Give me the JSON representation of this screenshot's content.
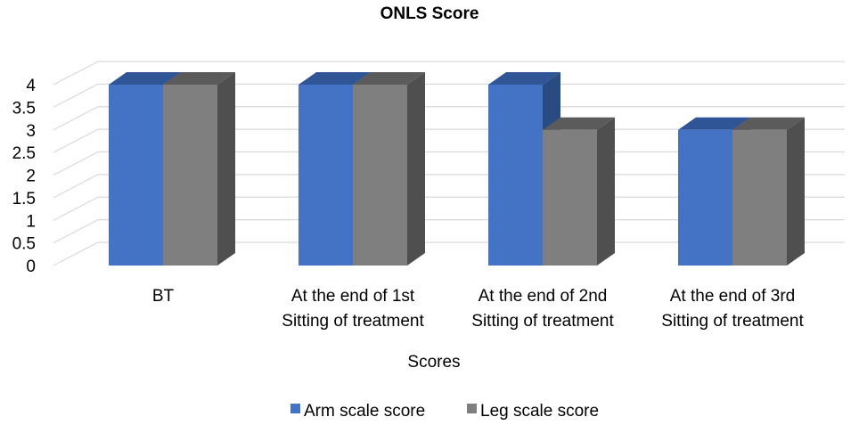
{
  "chart_data": {
    "type": "bar",
    "title": "ONLS Score",
    "xlabel": "Scores",
    "ylabel": "",
    "ylim": [
      0,
      4
    ],
    "yticks": [
      "0",
      "0.5",
      "1",
      "1.5",
      "2",
      "2.5",
      "3",
      "3.5",
      "4"
    ],
    "categories": [
      [
        "BT"
      ],
      [
        "At the end of 1st",
        "Sitting  of treatment"
      ],
      [
        "At the end of 2nd",
        "Sitting  of treatment"
      ],
      [
        "At the end of 3rd",
        "Sitting  of treatment"
      ]
    ],
    "series": [
      {
        "name": "Arm scale score",
        "values": [
          4,
          4,
          4,
          3
        ],
        "color": "#4472c4",
        "top": "#2f5597",
        "side": "#2a4a82"
      },
      {
        "name": "Leg scale score",
        "values": [
          4,
          4,
          3,
          3
        ],
        "color": "#7f7f7f",
        "top": "#5b5b5b",
        "side": "#4f4f4f"
      }
    ],
    "grid": true,
    "legend": "bottom",
    "style": "3d-clustered-column"
  }
}
